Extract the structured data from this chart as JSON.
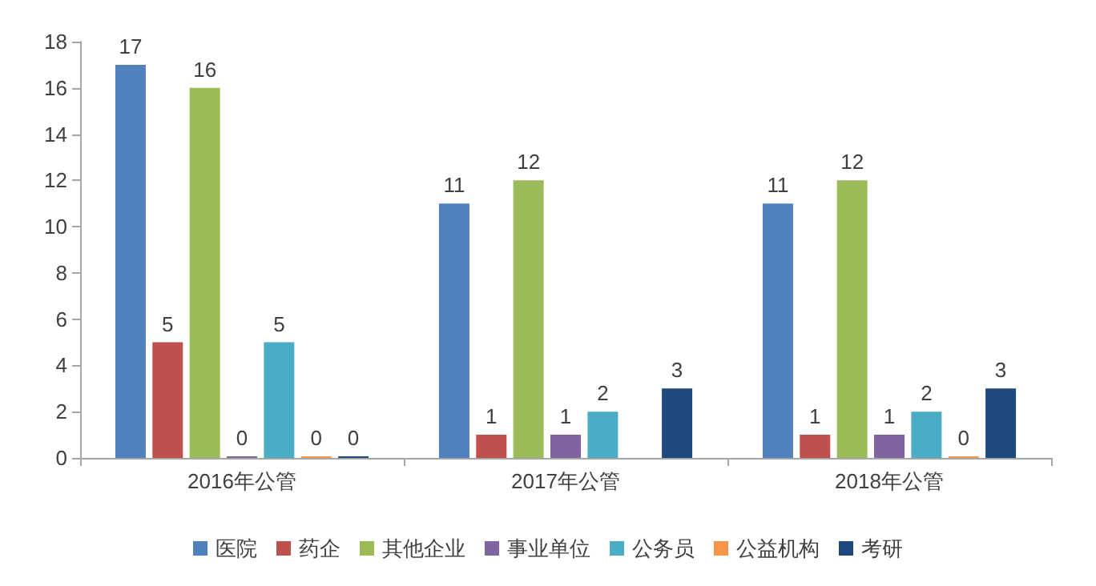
{
  "chart_data": {
    "type": "bar",
    "categories": [
      "2016年公管",
      "2017年公管",
      "2018年公管"
    ],
    "series": [
      {
        "name": "医院",
        "color": "#4f81bd",
        "values": [
          17,
          11,
          11
        ],
        "value_labels": [
          "17",
          "11",
          "11"
        ]
      },
      {
        "name": "药企",
        "color": "#c0504d",
        "values": [
          5,
          1,
          1
        ],
        "value_labels": [
          "5",
          "1",
          "1"
        ]
      },
      {
        "name": "其他企业",
        "color": "#9bbb59",
        "values": [
          16,
          12,
          12
        ],
        "value_labels": [
          "16",
          "12",
          "12"
        ]
      },
      {
        "name": "事业单位",
        "color": "#8064a2",
        "values": [
          0,
          1,
          1
        ],
        "value_labels": [
          "0",
          "1",
          "1"
        ]
      },
      {
        "name": "公务员",
        "color": "#4bacc6",
        "values": [
          5,
          2,
          2
        ],
        "value_labels": [
          "5",
          "2",
          "2"
        ]
      },
      {
        "name": "公益机构",
        "color": "#f79646",
        "values": [
          0,
          null,
          0
        ],
        "value_labels": [
          "0",
          null,
          "0"
        ]
      },
      {
        "name": "考研",
        "color": "#1f497d",
        "values": [
          0,
          3,
          3
        ],
        "value_labels": [
          "0",
          "3",
          "3"
        ]
      }
    ],
    "ylim": [
      0,
      18
    ],
    "yticks": [
      0,
      2,
      4,
      6,
      8,
      10,
      12,
      14,
      16,
      18
    ],
    "grid": false,
    "legend": "bottom"
  }
}
